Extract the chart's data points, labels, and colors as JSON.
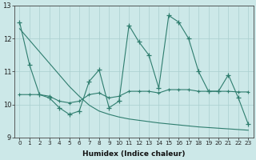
{
  "xlabel": "Humidex (Indice chaleur)",
  "ylabel": "",
  "x": [
    0,
    1,
    2,
    3,
    4,
    5,
    6,
    7,
    8,
    9,
    10,
    11,
    12,
    13,
    14,
    15,
    16,
    17,
    18,
    19,
    20,
    21,
    22,
    23
  ],
  "line1": [
    12.5,
    11.2,
    10.3,
    10.2,
    9.9,
    9.7,
    9.8,
    10.7,
    11.05,
    9.9,
    10.1,
    12.4,
    11.9,
    11.5,
    10.5,
    12.7,
    12.5,
    12.0,
    11.0,
    10.4,
    10.4,
    10.9,
    10.2,
    9.4
  ],
  "line2": [
    10.3,
    10.3,
    10.3,
    10.25,
    10.1,
    10.05,
    10.1,
    10.3,
    10.35,
    10.2,
    10.25,
    10.4,
    10.4,
    10.4,
    10.35,
    10.45,
    10.45,
    10.45,
    10.4,
    10.4,
    10.4,
    10.4,
    10.38,
    10.38
  ],
  "trend": [
    12.3,
    11.95,
    11.6,
    11.25,
    10.9,
    10.55,
    10.25,
    9.98,
    9.8,
    9.7,
    9.62,
    9.56,
    9.52,
    9.48,
    9.44,
    9.41,
    9.38,
    9.35,
    9.32,
    9.3,
    9.28,
    9.26,
    9.24,
    9.22
  ],
  "line_color": "#2e7d6e",
  "bg_color": "#cce8e8",
  "grid_color": "#aacfcf",
  "xlim": [
    -0.5,
    23.5
  ],
  "ylim": [
    9.0,
    13.0
  ],
  "yticks": [
    9,
    10,
    11,
    12,
    13
  ],
  "xticks": [
    0,
    1,
    2,
    3,
    4,
    5,
    6,
    7,
    8,
    9,
    10,
    11,
    12,
    13,
    14,
    15,
    16,
    17,
    18,
    19,
    20,
    21,
    22,
    23
  ]
}
